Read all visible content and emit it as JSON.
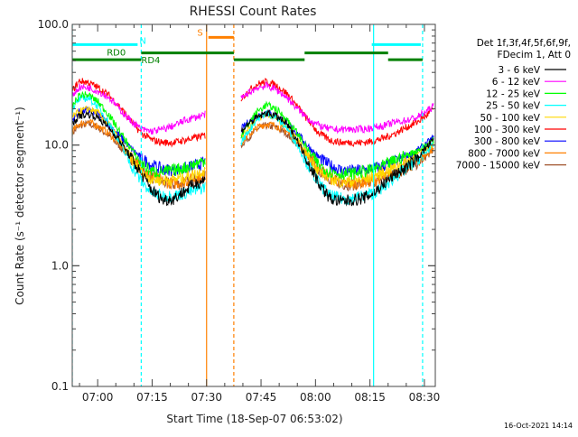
{
  "chart_data": {
    "type": "line",
    "title": "RHESSI Count Rates",
    "ylabel": "Count Rate (s⁻¹ detector segment⁻¹)",
    "xlabel": "Start Time (18-Sep-07 06:53:02)",
    "xlim_minutes": [
      53,
      153
    ],
    "ylim": [
      0.1,
      100
    ],
    "yscale": "log",
    "x_tick_labels": [
      "07:00",
      "07:15",
      "07:30",
      "07:45",
      "08:00",
      "08:15",
      "08:30"
    ],
    "x_tick_minutes": [
      60,
      75,
      90,
      105,
      120,
      135,
      150
    ],
    "y_tick_labels": [
      "0.1",
      "1.0",
      "10.0",
      "100.0"
    ],
    "y_tick_values": [
      0.1,
      1,
      10,
      100
    ],
    "detector_info": [
      "Det 1f,3f,4f,5f,6f,9f,",
      "FDecim 1, Att 0"
    ],
    "datestamp": "16-Oct-2021 14:14",
    "segments": [
      {
        "x": [
          53.0,
          55.0,
          57.5,
          60.0,
          63.0,
          66.0,
          69.0,
          72.0,
          75.0,
          78.0,
          81.0,
          84.0,
          87.0,
          89.6
        ]
      },
      {
        "x": [
          99.5,
          101.5,
          104.0,
          106.5,
          109.0,
          112.0,
          115.0,
          118.0,
          121.0,
          124.0,
          127.0,
          130.0,
          133.0,
          136.0,
          139.0,
          142.0,
          145.0,
          148.0,
          150.5,
          152.5
        ]
      }
    ],
    "series": [
      {
        "name": "3 - 6 keV",
        "color": "#000000",
        "values": [
          [
            15,
            17.5,
            18,
            17,
            14,
            11,
            8,
            5.8,
            4.2,
            3.5,
            3.6,
            4.2,
            4.8,
            5.2
          ],
          [
            13,
            15,
            17,
            18.5,
            17.5,
            15,
            11,
            7.2,
            4.8,
            3.6,
            3.4,
            3.5,
            3.6,
            4,
            4.8,
            5.8,
            6.5,
            7.8,
            9.5,
            11
          ]
        ]
      },
      {
        "name": "6 - 12 keV",
        "color": "#ff00ff",
        "values": [
          [
            26,
            30,
            30,
            28,
            25,
            20,
            16,
            13.5,
            13,
            13.5,
            14.5,
            16,
            17,
            18
          ],
          [
            24,
            27,
            30,
            31,
            29,
            25,
            20,
            16.5,
            14.5,
            13.5,
            13.5,
            13.5,
            13.5,
            14,
            14.5,
            15.5,
            16,
            17,
            19,
            21
          ]
        ]
      },
      {
        "name": "12 - 25 keV",
        "color": "#00ff00",
        "values": [
          [
            21,
            26,
            26,
            23,
            18,
            13,
            9.5,
            7,
            6,
            6,
            6.2,
            6.5,
            7,
            7.5
          ],
          [
            12,
            15,
            19,
            21.5,
            20,
            16.5,
            12.5,
            9,
            6.8,
            6,
            5.8,
            5.8,
            6,
            6.3,
            6.8,
            7.5,
            8.2,
            9,
            10,
            11
          ]
        ]
      },
      {
        "name": "25 - 50 keV",
        "color": "#00ffff",
        "values": [
          [
            20,
            24,
            24.5,
            21,
            15.5,
            10.5,
            7,
            5,
            4,
            3.8,
            3.8,
            4,
            4.2,
            4.5
          ],
          [
            10.5,
            13,
            16.5,
            18.5,
            17,
            14,
            10,
            6.8,
            4.8,
            3.8,
            3.6,
            3.6,
            3.8,
            4,
            4.5,
            5.5,
            6.3,
            7.5,
            8.8,
            10
          ]
        ]
      },
      {
        "name": "50 - 100 keV",
        "color": "#ffd700",
        "values": [
          [
            17,
            19,
            20,
            18.5,
            15,
            11,
            8,
            6,
            5.2,
            5.1,
            5.2,
            5.4,
            5.8,
            6.2
          ],
          [
            11.5,
            14,
            16.5,
            18,
            17,
            14.5,
            11,
            8,
            6.1,
            5.3,
            5,
            5,
            5.2,
            5.5,
            6,
            6.6,
            7.3,
            8.3,
            9.3,
            10.5
          ]
        ]
      },
      {
        "name": "100 - 300 keV",
        "color": "#ff0000",
        "values": [
          [
            28,
            34,
            33,
            30,
            26,
            21,
            16,
            12.5,
            11,
            10.5,
            10.5,
            11,
            11.5,
            12
          ],
          [
            24,
            28,
            32,
            33.5,
            31.5,
            27,
            21,
            16,
            12.5,
            11,
            10.5,
            10.5,
            10.5,
            10.8,
            11.5,
            12.5,
            14,
            15.5,
            17.5,
            20
          ]
        ]
      },
      {
        "name": "300 - 800 keV",
        "color": "#0000ff",
        "values": [
          [
            16,
            19,
            19.5,
            18,
            15,
            12,
            9.5,
            7.8,
            6.8,
            6.3,
            6.2,
            6.4,
            6.8,
            7.2
          ],
          [
            13.5,
            15.5,
            17.5,
            18.5,
            17.5,
            15.5,
            12.5,
            9.8,
            7.8,
            6.8,
            6.2,
            6.1,
            6.2,
            6.4,
            6.8,
            7.3,
            8,
            9,
            10.2,
            11.5
          ]
        ]
      },
      {
        "name": "800 - 7000 keV",
        "color": "#ff8000",
        "values": [
          [
            13,
            15,
            15.5,
            14.5,
            12.5,
            10.2,
            8.2,
            6.5,
            5.5,
            5,
            4.8,
            5,
            5.3,
            5.6
          ],
          [
            10.5,
            12,
            14,
            15,
            14.5,
            13,
            10.5,
            8.2,
            6.4,
            5.4,
            4.9,
            4.8,
            4.9,
            5.1,
            5.4,
            5.9,
            6.5,
            7.3,
            8.3,
            9.3
          ]
        ]
      },
      {
        "name": "7000 - 15000 keV",
        "color": "#a0522d",
        "values": [
          [
            12.5,
            14.5,
            15,
            14,
            12,
            9.8,
            7.9,
            6.3,
            5.4,
            4.9,
            4.7,
            4.9,
            5.2,
            5.5
          ],
          [
            10,
            11.5,
            13.5,
            14.5,
            14,
            12.5,
            10.2,
            8,
            6.2,
            5.3,
            4.8,
            4.7,
            4.8,
            5,
            5.3,
            5.8,
            6.3,
            7.1,
            8.1,
            9
          ]
        ]
      }
    ],
    "v_lines": [
      {
        "minute": 53.0,
        "color": "#00ffff",
        "style": "dashed"
      },
      {
        "minute": 72.0,
        "color": "#00ffff",
        "style": "dashed"
      },
      {
        "minute": 90.0,
        "color": "#ff8000",
        "style": "solid"
      },
      {
        "minute": 97.5,
        "color": "#ff8000",
        "style": "dashed"
      },
      {
        "minute": 136.0,
        "color": "#00ffff",
        "style": "solid"
      },
      {
        "minute": 149.5,
        "color": "#00ffff",
        "style": "dashed"
      }
    ],
    "flag_bars": [
      {
        "label": "N",
        "color": "#00ffff",
        "ranges": [
          [
            53,
            71
          ],
          [
            135.5,
            149
          ]
        ],
        "value": 68
      },
      {
        "label": "S",
        "color": "#ff8000",
        "ranges": [
          [
            90.5,
            97.5
          ]
        ],
        "value": 78
      },
      {
        "label": "RD0",
        "color": "#008000",
        "ranges": [
          [
            72,
            97.5
          ],
          [
            117,
            140
          ]
        ],
        "value": 58
      },
      {
        "label": "RD4",
        "color": "#008000",
        "ranges": [
          [
            53,
            72
          ],
          [
            97.5,
            117
          ],
          [
            140,
            149.5
          ]
        ],
        "value": 51
      }
    ]
  }
}
